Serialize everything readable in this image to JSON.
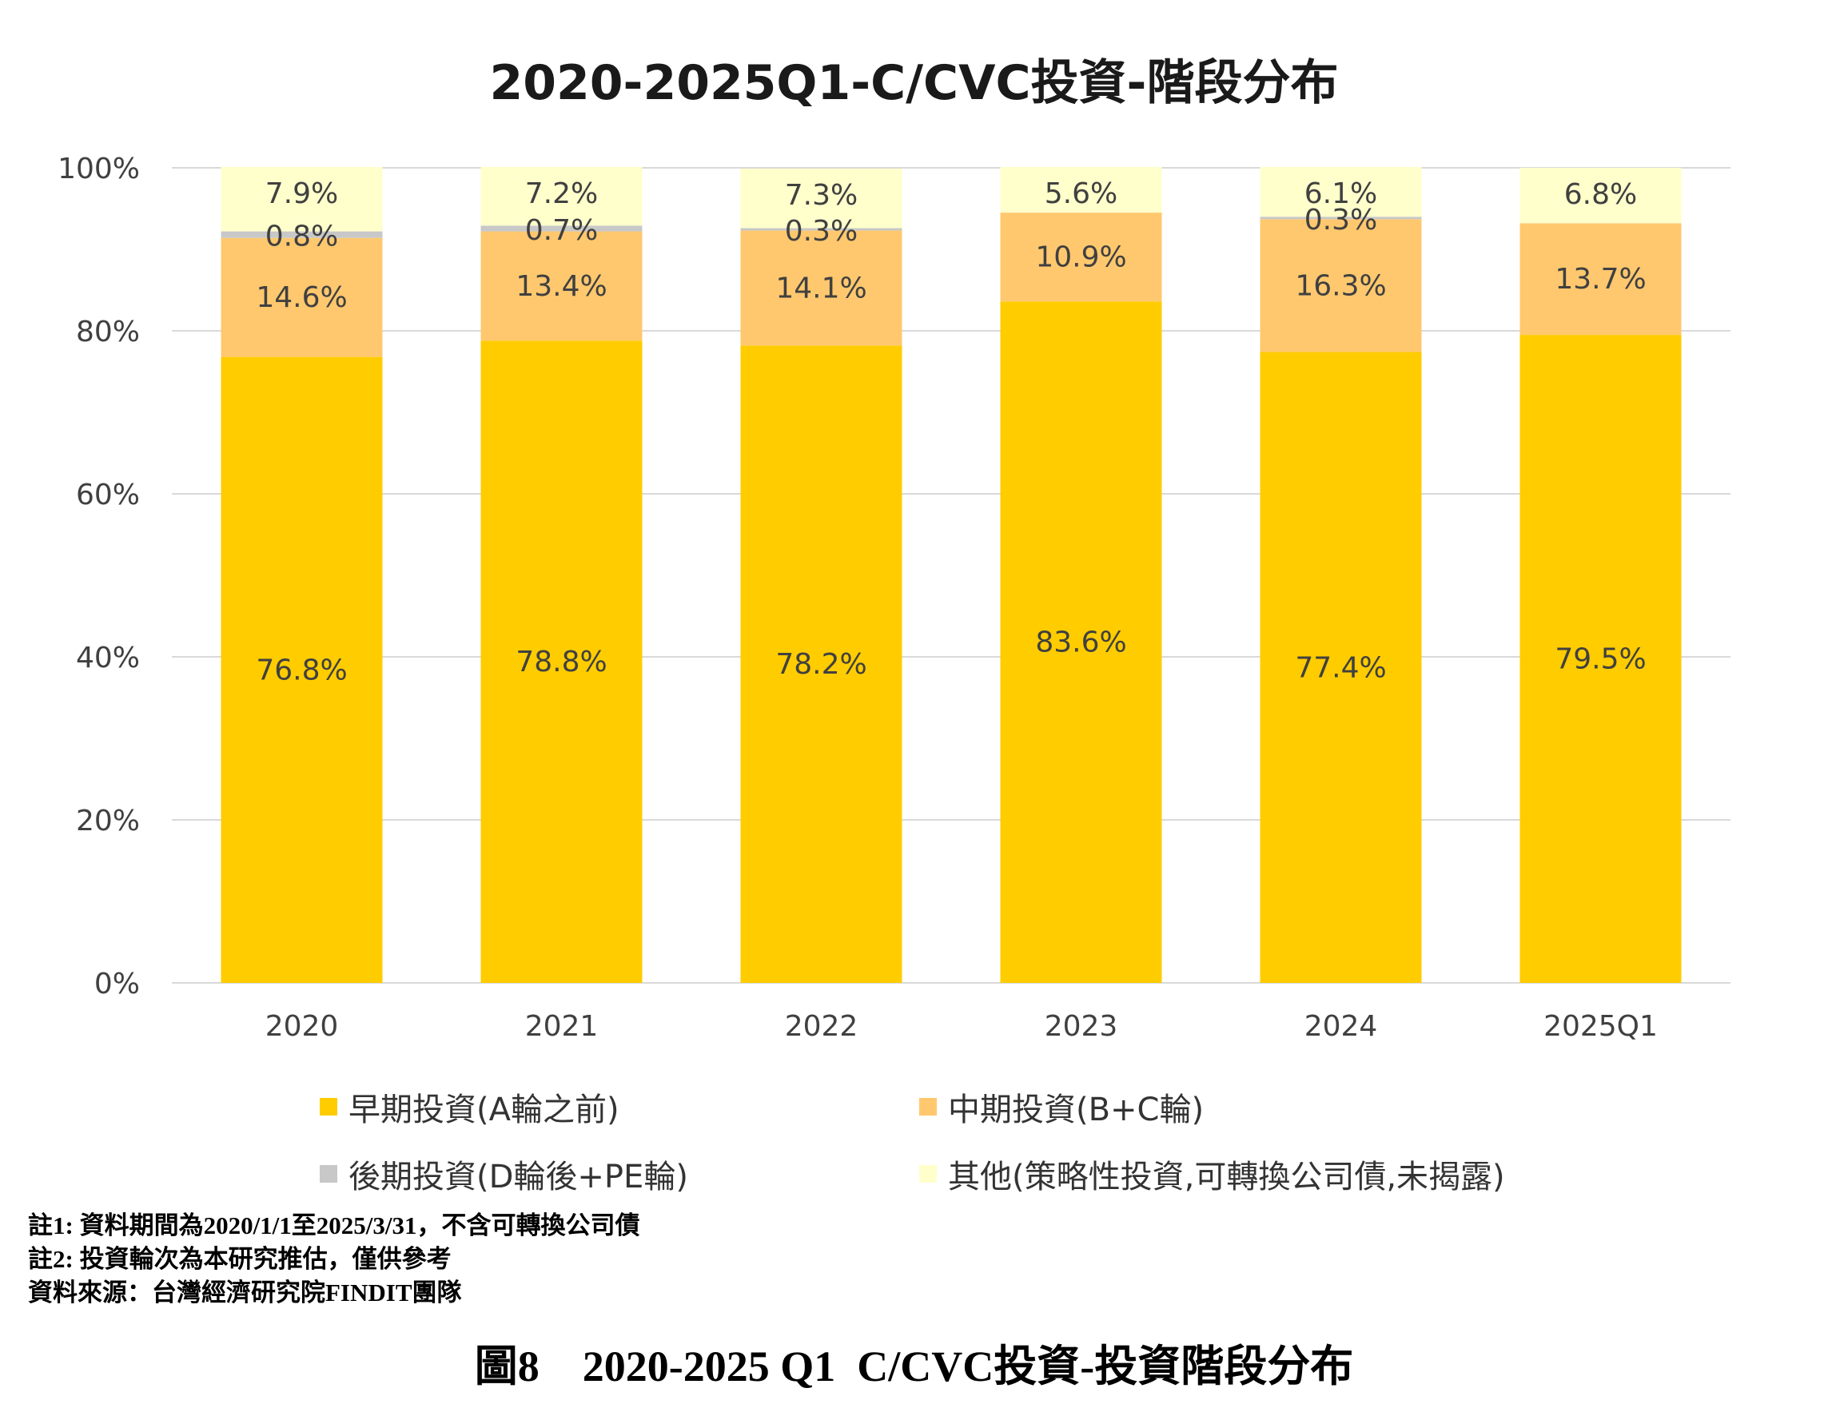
{
  "chart_data": {
    "type": "stacked-bar-100",
    "title": "2020-2025Q1-C/CVC投資-階段分布",
    "categories": [
      "2020",
      "2021",
      "2022",
      "2023",
      "2024",
      "2025Q1"
    ],
    "series": [
      {
        "name": "早期投資(A輪之前)",
        "color": "#FFCC00",
        "values": [
          76.8,
          78.8,
          78.2,
          83.6,
          77.4,
          79.5
        ],
        "labels": [
          "76.8%",
          "78.8%",
          "78.2%",
          "83.6%",
          "77.4%",
          "79.5%"
        ]
      },
      {
        "name": "中期投資(B+C輪)",
        "color": "#FFC86E",
        "values": [
          14.6,
          13.4,
          14.1,
          10.9,
          16.3,
          13.7
        ],
        "labels": [
          "14.6%",
          "13.4%",
          "14.1%",
          "10.9%",
          "16.3%",
          "13.7%"
        ]
      },
      {
        "name": "後期投資(D輪後+PE輪)",
        "color": "#C8C8C8",
        "values": [
          0.8,
          0.7,
          0.3,
          0,
          0.3,
          0
        ],
        "labels": [
          "0.8%",
          "0.7%",
          "0.3%",
          "",
          "0.3%",
          ""
        ]
      },
      {
        "name": "其他(策略性投資,可轉換公司債,未揭露)",
        "color": "#FFFFCC",
        "values": [
          7.9,
          7.2,
          7.3,
          5.6,
          6.1,
          6.8
        ],
        "labels": [
          "7.9%",
          "7.2%",
          "7.3%",
          "5.6%",
          "6.1%",
          "6.8%"
        ]
      }
    ],
    "ylim": [
      0,
      100
    ],
    "yticks": [
      0,
      20,
      40,
      60,
      80,
      100
    ],
    "ytick_labels": [
      "0%",
      "20%",
      "40%",
      "60%",
      "80%",
      "100%"
    ],
    "xlabel": "",
    "ylabel": "",
    "grid": true,
    "legend_position": "bottom"
  },
  "notes": [
    "註1: 資料期間為2020/1/1至2025/3/31，不含可轉換公司債",
    "註2: 投資輪次為本研究推估，僅供參考",
    "資料來源：台灣經濟研究院FINDIT團隊"
  ],
  "caption": "圖8　2020-2025 Q1  C/CVC投資-投資階段分布"
}
